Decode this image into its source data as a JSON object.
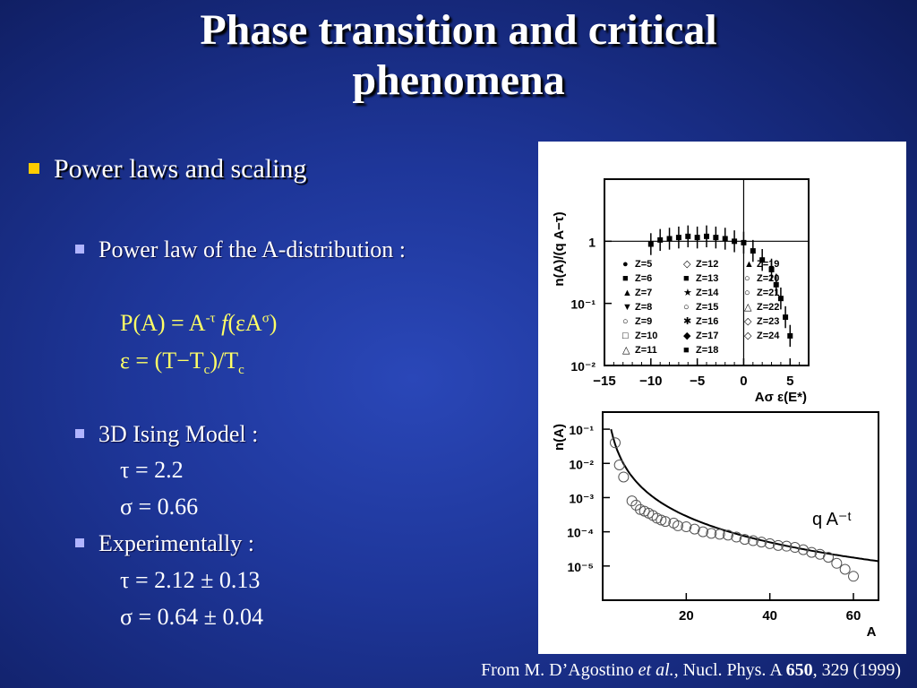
{
  "slide": {
    "title_line1": "Phase transition and critical",
    "title_line2": "phenomena",
    "bullet_main": "Power laws and scaling",
    "sub1": "Power law of  the A-distribution :",
    "eq1": {
      "p": "P(A) = A",
      "tau_sup": "-τ",
      "f": "f",
      "paren": "(εA",
      "sigma_sup": "σ",
      "close": ")"
    },
    "eq2": {
      "a": "ε = (T−T",
      "c1": "c",
      "b": ")/T",
      "c2": "c"
    },
    "sub2": "3D Ising Model :",
    "ising_tau": "τ = 2.2",
    "ising_sigma": "σ = 0.66",
    "sub3": "Experimentally :",
    "exp_tau": "τ = 2.12 ± 0.13",
    "exp_sigma": "σ = 0.64 ± 0.04",
    "citation": {
      "a": "From M. D’Agostino ",
      "etal": "et al.,",
      "b": " Nucl. Phys. A ",
      "vol": "650",
      "c": ", 329 (1999)"
    }
  },
  "colors": {
    "background": "#1e3699",
    "text": "#ffffff",
    "equation": "#ffff66",
    "main_bullet": "#ffcc00",
    "sub_bullet": "#b0b4ff"
  },
  "chart_data": [
    {
      "type": "scatter",
      "xlabel": "Aσ ε(E*)",
      "ylabel": "n(A)/(q A−τ)",
      "xlim": [
        -15,
        7
      ],
      "ylim_log10": [
        -2,
        1
      ],
      "xticks": [
        "−15",
        "−10",
        "−5",
        "0",
        "5"
      ],
      "yticks": [
        "10⁻²",
        "10⁻¹",
        "1"
      ],
      "legend": [
        "Z=5",
        "Z=6",
        "Z=7",
        "Z=8",
        "Z=9",
        "Z=10",
        "Z=11",
        "Z=12",
        "Z=13",
        "Z=14",
        "Z=15",
        "Z=16",
        "Z=17",
        "Z=18",
        "Z=19",
        "Z=20",
        "Z=21",
        "Z=22",
        "Z=23",
        "Z=24"
      ],
      "series": [
        {
          "x": [
            -10,
            -9,
            -8,
            -7,
            -6,
            -5,
            -4,
            -3,
            -2,
            -1,
            0
          ],
          "y": [
            0.9,
            1.05,
            1.1,
            1.15,
            1.2,
            1.15,
            1.2,
            1.15,
            1.1,
            1.0,
            0.95
          ]
        },
        {
          "x": [
            1,
            2,
            3,
            3.5,
            4,
            4.5,
            5
          ],
          "y": [
            0.7,
            0.5,
            0.35,
            0.2,
            0.12,
            0.06,
            0.03
          ]
        }
      ]
    },
    {
      "type": "scatter",
      "xlabel": "A",
      "ylabel": "n(A)",
      "xlim": [
        0,
        66
      ],
      "ylim_log10": [
        -6,
        -0.5
      ],
      "xticks": [
        "20",
        "40",
        "60"
      ],
      "yticks": [
        "10⁻¹",
        "10⁻²",
        "10⁻³",
        "10⁻⁴",
        "10⁻⁵"
      ],
      "fit_label": "q A⁻ᵗ",
      "series": [
        {
          "name": "q A⁻ᵗ",
          "x": [
            2,
            60
          ],
          "y": [
            0.1,
            1.76e-05
          ]
        },
        {
          "x": [
            3,
            4,
            5,
            7,
            8,
            9,
            10,
            11,
            12,
            13,
            14,
            15,
            17,
            18,
            20,
            22,
            24,
            26,
            28,
            30,
            32,
            34,
            36,
            38,
            40,
            42,
            44,
            46,
            48,
            50,
            52,
            54,
            56,
            58,
            60
          ],
          "y": [
            0.04,
            0.009,
            0.004,
            0.0008,
            0.0006,
            0.00045,
            0.0004,
            0.00035,
            0.0003,
            0.00025,
            0.00022,
            0.0002,
            0.00018,
            0.00015,
            0.00014,
            0.00012,
            0.0001,
            9e-05,
            8.5e-05,
            8e-05,
            7e-05,
            6e-05,
            5.5e-05,
            5e-05,
            4.5e-05,
            4e-05,
            3.8e-05,
            3.5e-05,
            3e-05,
            2.5e-05,
            2.2e-05,
            1.8e-05,
            1.2e-05,
            8e-06,
            5e-06
          ]
        }
      ]
    }
  ]
}
